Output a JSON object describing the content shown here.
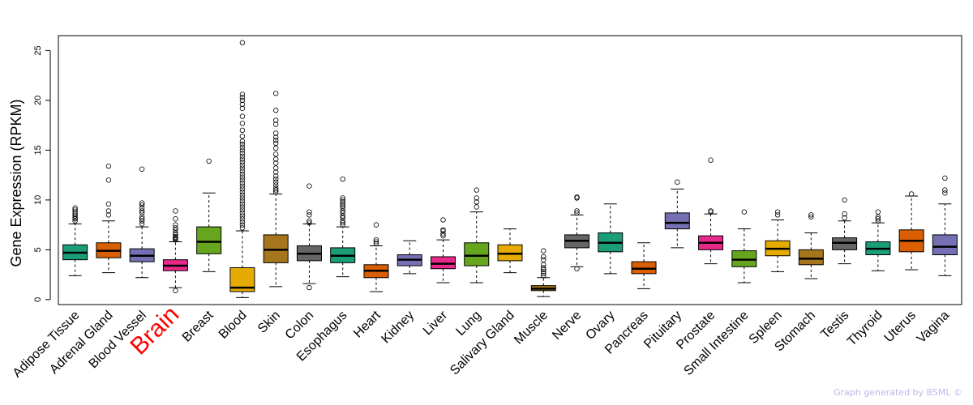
{
  "chart_data": {
    "type": "boxplot",
    "title": "",
    "xlabel": "",
    "ylabel": "Gene Expression (RPKM)",
    "ylim": [
      -0.5,
      26.5
    ],
    "yticks": [
      0,
      5,
      10,
      15,
      20,
      25
    ],
    "highlight_category": "Brain",
    "highlight_color": "#ff0000",
    "credit": "Graph generated by BSML ©",
    "categories": [
      {
        "name": "Adipose Tissue",
        "color": "#1b9e77",
        "whisker_low": 2.4,
        "q1": 4.0,
        "median": 4.7,
        "q3": 5.5,
        "whisker_high": 7.6,
        "outliers": [
          7.9,
          8.1,
          8.2,
          8.4,
          8.6,
          8.8,
          9.0,
          9.2
        ]
      },
      {
        "name": "Adrenal Gland",
        "color": "#d95f02",
        "whisker_low": 2.7,
        "q1": 4.2,
        "median": 4.9,
        "q3": 5.7,
        "whisker_high": 7.9,
        "outliers": [
          8.5,
          8.9,
          9.6,
          12.0,
          13.4
        ]
      },
      {
        "name": "Blood Vessel",
        "color": "#7570b3",
        "whisker_low": 2.2,
        "q1": 3.8,
        "median": 4.4,
        "q3": 5.1,
        "whisker_high": 7.3,
        "outliers": [
          7.6,
          7.9,
          8.1,
          8.3,
          8.7,
          8.9,
          9.2,
          9.5,
          9.7,
          13.1
        ]
      },
      {
        "name": "Brain",
        "color": "#e7298a",
        "whisker_low": 1.2,
        "q1": 2.9,
        "median": 3.4,
        "q3": 4.0,
        "whisker_high": 5.8,
        "outliers": [
          0.9,
          6.0,
          6.1,
          6.2,
          6.3,
          6.5,
          6.7,
          7.0,
          7.2,
          7.5,
          8.1,
          8.9
        ]
      },
      {
        "name": "Breast",
        "color": "#66a61e",
        "whisker_low": 2.8,
        "q1": 4.6,
        "median": 5.8,
        "q3": 7.3,
        "whisker_high": 10.7,
        "outliers": [
          13.9
        ]
      },
      {
        "name": "Blood",
        "color": "#e6ab02",
        "whisker_low": 0.2,
        "q1": 0.8,
        "median": 1.2,
        "q3": 3.2,
        "whisker_high": 6.9,
        "outliers": [
          7.2,
          7.5,
          7.8,
          8.1,
          8.4,
          8.7,
          9.0,
          9.3,
          9.6,
          9.9,
          10.2,
          10.5,
          10.8,
          11.1,
          11.4,
          11.7,
          12.0,
          12.3,
          12.6,
          12.9,
          13.2,
          13.5,
          13.8,
          14.1,
          14.4,
          14.7,
          15.0,
          15.3,
          15.6,
          15.9,
          16.4,
          17.0,
          17.7,
          18.4,
          19.2,
          19.6,
          20.0,
          20.3,
          20.6,
          25.8
        ]
      },
      {
        "name": "Skin",
        "color": "#a6761d",
        "whisker_low": 1.3,
        "q1": 3.7,
        "median": 5.0,
        "q3": 6.5,
        "whisker_high": 10.6,
        "outliers": [
          10.8,
          11.0,
          11.2,
          11.5,
          11.8,
          12.1,
          12.4,
          12.8,
          13.2,
          13.7,
          14.1,
          14.6,
          15.2,
          15.7,
          16.0,
          16.3,
          16.7,
          17.6,
          18.0,
          19.0,
          20.7
        ]
      },
      {
        "name": "Colon",
        "color": "#666666",
        "whisker_low": 1.6,
        "q1": 3.9,
        "median": 4.6,
        "q3": 5.4,
        "whisker_high": 7.6,
        "outliers": [
          1.2,
          7.7,
          7.9,
          8.5,
          8.8,
          11.4
        ]
      },
      {
        "name": "Esophagus",
        "color": "#1b9e77",
        "whisker_low": 2.3,
        "q1": 3.7,
        "median": 4.4,
        "q3": 5.2,
        "whisker_high": 7.3,
        "outliers": [
          7.5,
          7.7,
          7.9,
          8.2,
          8.4,
          8.7,
          8.9,
          9.2,
          9.4,
          9.6,
          9.8,
          10.0,
          10.2,
          12.1
        ]
      },
      {
        "name": "Heart",
        "color": "#d95f02",
        "whisker_low": 0.8,
        "q1": 2.2,
        "median": 2.9,
        "q3": 3.5,
        "whisker_high": 5.4,
        "outliers": [
          5.6,
          5.8,
          6.0,
          7.5
        ]
      },
      {
        "name": "Kidney",
        "color": "#7570b3",
        "whisker_low": 2.6,
        "q1": 3.4,
        "median": 4.0,
        "q3": 4.5,
        "whisker_high": 5.9,
        "outliers": []
      },
      {
        "name": "Liver",
        "color": "#e7298a",
        "whisker_low": 1.7,
        "q1": 3.1,
        "median": 3.6,
        "q3": 4.3,
        "whisker_high": 6.0,
        "outliers": [
          6.4,
          6.6,
          6.9,
          7.0,
          8.0
        ]
      },
      {
        "name": "Lung",
        "color": "#66a61e",
        "whisker_low": 1.7,
        "q1": 3.4,
        "median": 4.4,
        "q3": 5.7,
        "whisker_high": 8.8,
        "outliers": [
          9.3,
          9.8,
          10.2,
          11.0
        ]
      },
      {
        "name": "Salivary Gland",
        "color": "#e6ab02",
        "whisker_low": 2.7,
        "q1": 3.9,
        "median": 4.6,
        "q3": 5.5,
        "whisker_high": 7.1,
        "outliers": []
      },
      {
        "name": "Muscle",
        "color": "#a6761d",
        "whisker_low": 0.3,
        "q1": 0.9,
        "median": 1.1,
        "q3": 1.4,
        "whisker_high": 2.2,
        "outliers": [
          2.4,
          2.6,
          2.8,
          3.0,
          3.2,
          3.5,
          4.0,
          4.3,
          4.9
        ]
      },
      {
        "name": "Nerve",
        "color": "#666666",
        "whisker_low": 3.3,
        "q1": 5.2,
        "median": 5.9,
        "q3": 6.5,
        "whisker_high": 8.5,
        "outliers": [
          3.1,
          8.7,
          8.9,
          10.2,
          10.3
        ]
      },
      {
        "name": "Ovary",
        "color": "#1b9e77",
        "whisker_low": 2.6,
        "q1": 4.8,
        "median": 5.7,
        "q3": 6.7,
        "whisker_high": 9.6,
        "outliers": []
      },
      {
        "name": "Pancreas",
        "color": "#d95f02",
        "whisker_low": 1.1,
        "q1": 2.6,
        "median": 3.1,
        "q3": 3.8,
        "whisker_high": 5.7,
        "outliers": []
      },
      {
        "name": "Pituitary",
        "color": "#7570b3",
        "whisker_low": 5.2,
        "q1": 7.1,
        "median": 7.7,
        "q3": 8.7,
        "whisker_high": 11.1,
        "outliers": [
          11.8
        ]
      },
      {
        "name": "Prostate",
        "color": "#e7298a",
        "whisker_low": 3.6,
        "q1": 5.0,
        "median": 5.7,
        "q3": 6.4,
        "whisker_high": 8.6,
        "outliers": [
          8.8,
          8.9,
          14.0
        ]
      },
      {
        "name": "Small Intestine",
        "color": "#66a61e",
        "whisker_low": 1.7,
        "q1": 3.3,
        "median": 4.0,
        "q3": 4.9,
        "whisker_high": 7.1,
        "outliers": [
          8.8
        ]
      },
      {
        "name": "Spleen",
        "color": "#e6ab02",
        "whisker_low": 2.8,
        "q1": 4.4,
        "median": 5.1,
        "q3": 5.9,
        "whisker_high": 8.0,
        "outliers": [
          8.5,
          8.8
        ]
      },
      {
        "name": "Stomach",
        "color": "#a6761d",
        "whisker_low": 2.1,
        "q1": 3.5,
        "median": 4.1,
        "q3": 5.0,
        "whisker_high": 6.7,
        "outliers": [
          8.3,
          8.5
        ]
      },
      {
        "name": "Testis",
        "color": "#666666",
        "whisker_low": 3.6,
        "q1": 5.0,
        "median": 5.7,
        "q3": 6.2,
        "whisker_high": 7.9,
        "outliers": [
          8.2,
          8.6,
          10.0
        ]
      },
      {
        "name": "Thyroid",
        "color": "#1b9e77",
        "whisker_low": 2.9,
        "q1": 4.5,
        "median": 5.1,
        "q3": 5.8,
        "whisker_high": 7.7,
        "outliers": [
          7.9,
          8.1,
          8.3,
          8.8
        ]
      },
      {
        "name": "Uterus",
        "color": "#d95f02",
        "whisker_low": 3.0,
        "q1": 4.8,
        "median": 5.9,
        "q3": 7.0,
        "whisker_high": 10.4,
        "outliers": [
          10.6
        ]
      },
      {
        "name": "Vagina",
        "color": "#7570b3",
        "whisker_low": 2.4,
        "q1": 4.5,
        "median": 5.3,
        "q3": 6.5,
        "whisker_high": 9.6,
        "outliers": [
          10.7,
          11.0,
          12.2
        ]
      }
    ]
  }
}
